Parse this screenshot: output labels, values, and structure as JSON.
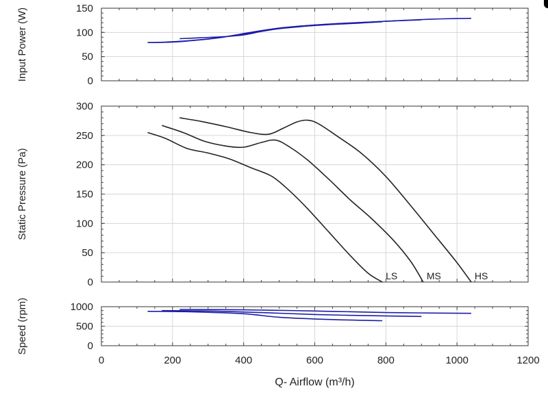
{
  "chart_data": [
    {
      "type": "line",
      "ylabel": "Input Power (W)",
      "xlim": [
        0,
        1200
      ],
      "ylim": [
        0,
        150
      ],
      "yticks": [
        0,
        50,
        100,
        150
      ],
      "grid": true,
      "line_color": "#1c1ca8",
      "series": [
        {
          "x": [
            130,
            180,
            250,
            330,
            400,
            480,
            560,
            640,
            720,
            790
          ],
          "y": [
            79,
            80,
            83,
            89,
            97,
            106,
            112,
            116,
            119,
            122
          ]
        },
        {
          "x": [
            130,
            200,
            270,
            340,
            420,
            500,
            580,
            660,
            740,
            800,
            900
          ],
          "y": [
            79,
            80,
            84,
            90,
            100,
            109,
            114,
            118,
            121,
            123,
            126
          ]
        },
        {
          "x": [
            220,
            280,
            340,
            400,
            450,
            500,
            560,
            640,
            720,
            800,
            880,
            960,
            1040
          ],
          "y": [
            87,
            89,
            91,
            95,
            102,
            108,
            113,
            117,
            120,
            123,
            126,
            128,
            129
          ]
        }
      ]
    },
    {
      "type": "line",
      "ylabel": "Static Pressure (Pa)",
      "xlim": [
        0,
        1200
      ],
      "ylim": [
        0,
        300
      ],
      "yticks": [
        0,
        50,
        100,
        150,
        200,
        250,
        300
      ],
      "grid": true,
      "line_color": "#222222",
      "series": [
        {
          "name": "LS",
          "x": [
            130,
            180,
            240,
            300,
            360,
            420,
            480,
            530,
            580,
            640,
            700,
            750,
            790
          ],
          "y": [
            255,
            245,
            228,
            220,
            210,
            195,
            180,
            155,
            125,
            85,
            45,
            15,
            0
          ]
        },
        {
          "name": "MS",
          "x": [
            170,
            230,
            290,
            350,
            400,
            450,
            490,
            530,
            580,
            640,
            700,
            760,
            820,
            870,
            905
          ],
          "y": [
            267,
            255,
            240,
            232,
            230,
            238,
            242,
            230,
            208,
            175,
            140,
            108,
            72,
            35,
            0
          ]
        },
        {
          "name": "HS",
          "x": [
            220,
            280,
            350,
            420,
            470,
            510,
            550,
            580,
            610,
            660,
            730,
            800,
            870,
            940,
            1000,
            1040
          ],
          "y": [
            280,
            274,
            265,
            255,
            252,
            262,
            273,
            276,
            270,
            250,
            220,
            180,
            130,
            78,
            33,
            0
          ]
        }
      ]
    },
    {
      "type": "line",
      "ylabel": "Speed (rpm)",
      "xlabel": "Q- Airflow (m³/h)",
      "xlim": [
        0,
        1200
      ],
      "ylim": [
        0,
        1000
      ],
      "xticks": [
        0,
        200,
        400,
        600,
        800,
        1000,
        1200
      ],
      "yticks": [
        0,
        500,
        1000
      ],
      "grid": true,
      "line_color": "#1c1ca8",
      "series": [
        {
          "x": [
            130,
            250,
            400,
            500,
            650,
            790
          ],
          "y": [
            880,
            870,
            820,
            730,
            670,
            640
          ]
        },
        {
          "x": [
            170,
            300,
            450,
            600,
            750,
            900
          ],
          "y": [
            900,
            890,
            850,
            800,
            770,
            750
          ]
        },
        {
          "x": [
            220,
            400,
            600,
            800,
            1040
          ],
          "y": [
            930,
            920,
            890,
            850,
            830
          ]
        }
      ]
    }
  ]
}
